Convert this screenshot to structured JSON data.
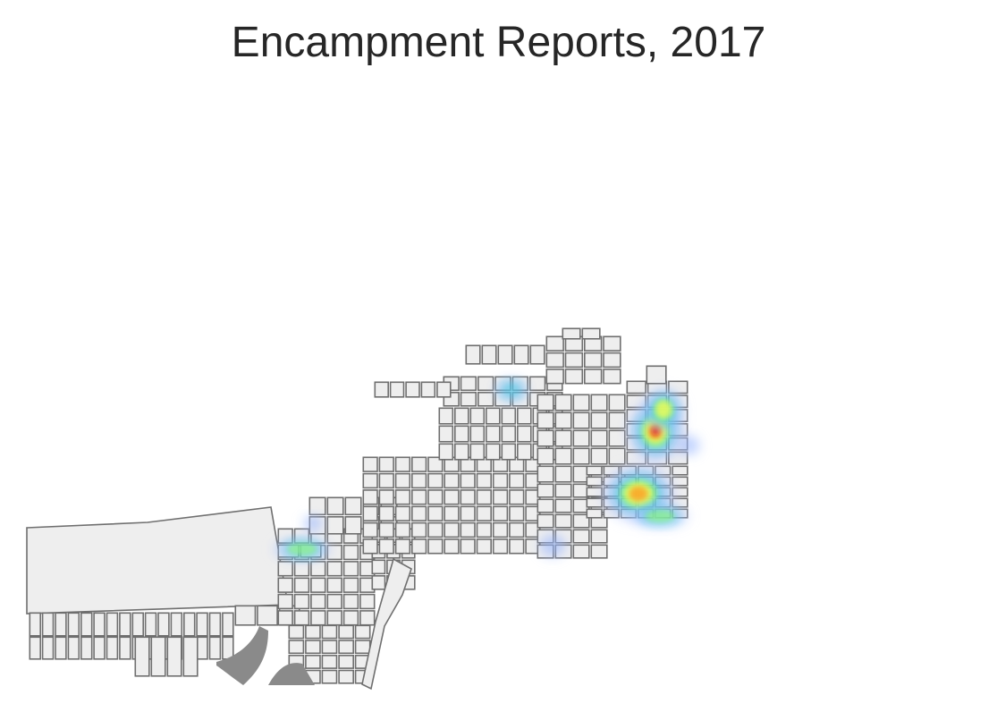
{
  "title": "Encampment Reports, 2017",
  "style": {
    "block_fill": "#eeeeee",
    "block_stroke": "#6f6f6f",
    "water_fill": "#8a8a8a",
    "heat_colors": [
      "#c8d2ff",
      "#6fa0ff",
      "#22d3d3",
      "#9dff6b",
      "#ffff4d",
      "#ff9d1f",
      "#e01010"
    ]
  },
  "heatmap": {
    "hotspots": [
      {
        "name": "hotspot-east-upper",
        "intensity": 1.0
      },
      {
        "name": "hotspot-east-mid",
        "intensity": 0.85
      },
      {
        "name": "hotspot-southeast",
        "intensity": 0.8
      },
      {
        "name": "hotspot-north-strip",
        "intensity": 0.5
      },
      {
        "name": "hotspot-west-strip",
        "intensity": 0.55
      },
      {
        "name": "hotspot-south-center",
        "intensity": 0.35
      }
    ]
  }
}
